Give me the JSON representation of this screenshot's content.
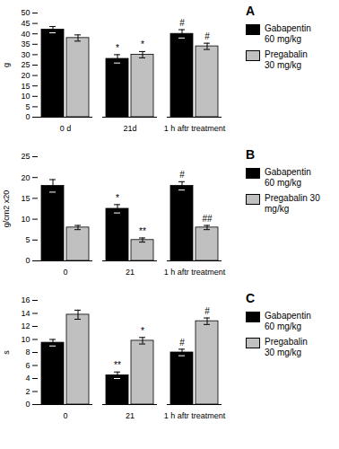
{
  "chart_data": [
    {
      "type": "bar",
      "title": "A",
      "ylabel": "g",
      "categories": [
        "0 d",
        "21d",
        "1 h aftr treatment"
      ],
      "series": [
        {
          "name": "Gabapentin\n60 mg/kg",
          "color": "black",
          "values": [
            42,
            28,
            40
          ],
          "errors": [
            1.5,
            2.0,
            2.0
          ],
          "annotations": [
            null,
            "*",
            "#"
          ]
        },
        {
          "name": "Pregabalin\n30 mg/kg",
          "color": "#c0c0c0",
          "values": [
            38,
            30,
            34
          ],
          "errors": [
            1.5,
            1.5,
            1.5
          ],
          "annotations": [
            null,
            "*",
            "#"
          ]
        }
      ],
      "ylim": [
        0,
        50
      ],
      "yticks": [
        0,
        5,
        10,
        15,
        20,
        25,
        30,
        35,
        40,
        45,
        50
      ],
      "grid": false,
      "legend": "right"
    },
    {
      "type": "bar",
      "title": "B",
      "ylabel": "g/cm2 x20",
      "categories": [
        "0",
        "21",
        "1 h aftr treatment"
      ],
      "series": [
        {
          "name": "Gabapentin\n60 mg/kg",
          "color": "black",
          "values": [
            18,
            12.5,
            18
          ],
          "errors": [
            1.5,
            1.0,
            1.0
          ],
          "annotations": [
            null,
            "*",
            "#"
          ]
        },
        {
          "name": "Pregabalin 30\nmg/kg",
          "color": "#c0c0c0",
          "values": [
            8,
            5,
            8
          ],
          "errors": [
            0.5,
            0.5,
            0.5
          ],
          "annotations": [
            null,
            "**",
            "##"
          ]
        }
      ],
      "ylim": [
        0,
        25
      ],
      "yticks": [
        0,
        5,
        10,
        15,
        20,
        25
      ],
      "grid": false,
      "legend": "right"
    },
    {
      "type": "bar",
      "title": "C",
      "ylabel": "s",
      "categories": [
        "0",
        "21",
        "1 h aftr treatment"
      ],
      "series": [
        {
          "name": "Gabapentin\n60 mg/kg",
          "color": "black",
          "values": [
            9.5,
            4.5,
            8
          ],
          "errors": [
            0.5,
            0.5,
            0.5
          ],
          "annotations": [
            null,
            "**",
            "#"
          ]
        },
        {
          "name": "Pregabalin\n30 mg/kg",
          "color": "#c0c0c0",
          "values": [
            13.8,
            9.8,
            12.8
          ],
          "errors": [
            0.7,
            0.5,
            0.5
          ],
          "annotations": [
            null,
            "*",
            "#"
          ]
        }
      ],
      "ylim": [
        0,
        16
      ],
      "yticks": [
        0,
        2,
        4,
        6,
        8,
        10,
        12,
        14,
        16
      ],
      "grid": false,
      "legend": "right"
    }
  ]
}
